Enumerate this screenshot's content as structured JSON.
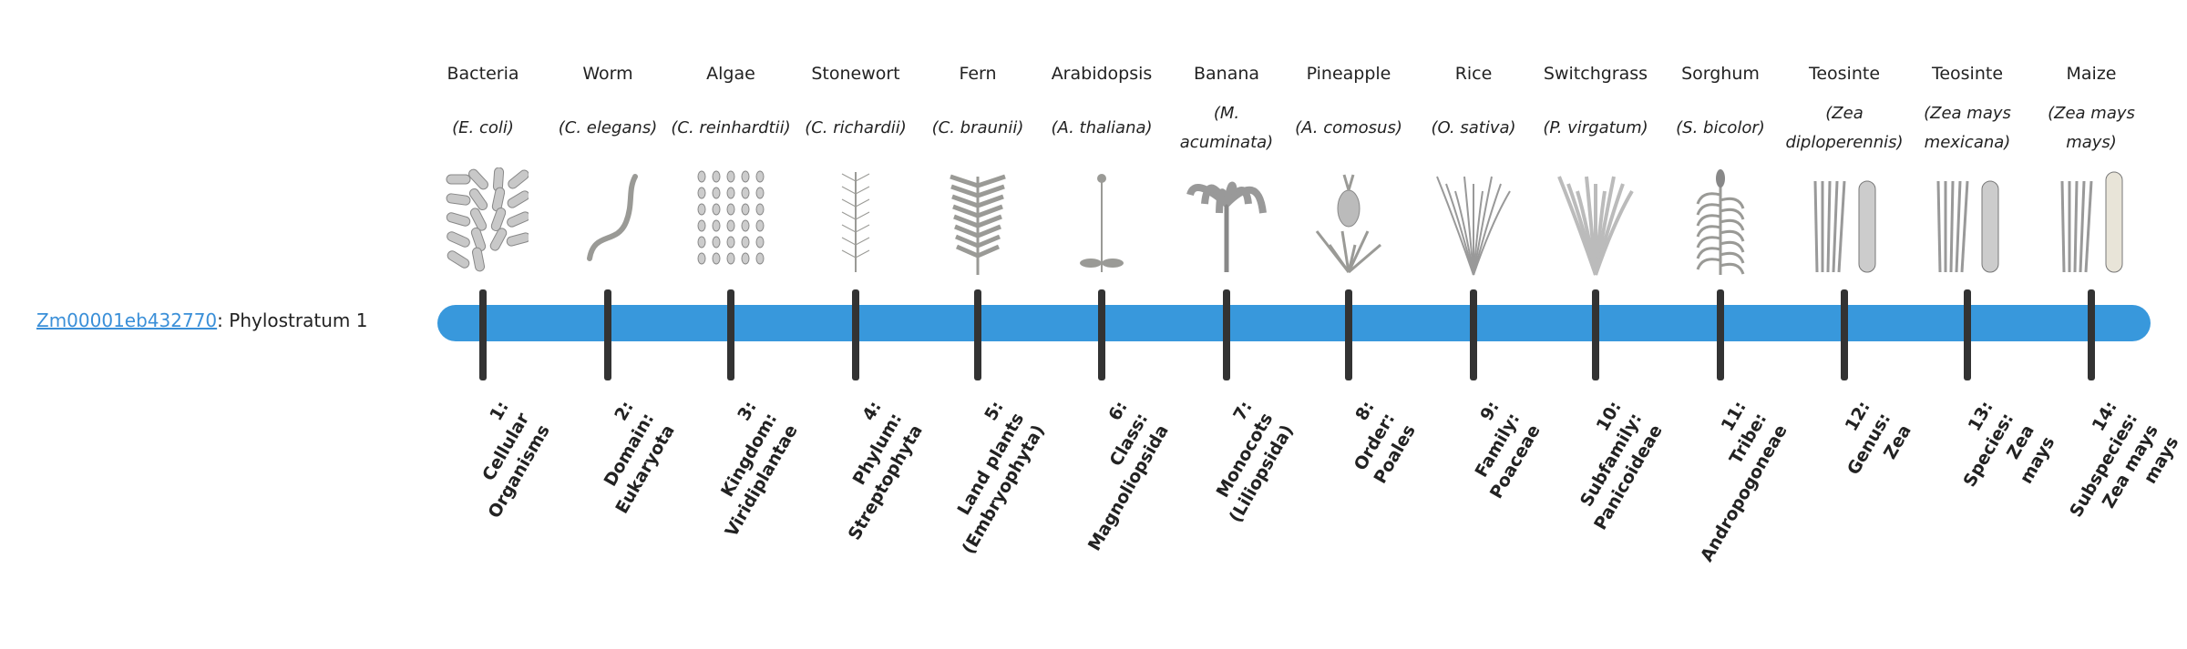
{
  "gene": {
    "id": "Zm00001eb432770",
    "suffix": ": Phylostratum 1"
  },
  "colors": {
    "bar": "#3898dc",
    "tick": "#333333",
    "link": "#3a8fd8"
  },
  "strata": [
    {
      "common": "Bacteria",
      "species": "(E. coli)",
      "rank": [
        "1:",
        "Cellular",
        "Organisms"
      ],
      "icon": "bacteria-icon"
    },
    {
      "common": "Worm",
      "species": "(C. elegans)",
      "rank": [
        "2:",
        "Domain:",
        "Eukaryota"
      ],
      "icon": "worm-icon"
    },
    {
      "common": "Algae",
      "species": "(C. reinhardtii)",
      "rank": [
        "3:",
        "Kingdom:",
        "Viridiplantae"
      ],
      "icon": "algae-icon"
    },
    {
      "common": "Stonewort",
      "species": "(C. richardii)",
      "rank": [
        "4:",
        "Phylum:",
        "Streptophyta"
      ],
      "icon": "stonewort-icon"
    },
    {
      "common": "Fern",
      "species": "(C. braunii)",
      "rank": [
        "5:",
        "Land plants",
        "(Embryophyta)"
      ],
      "icon": "fern-icon"
    },
    {
      "common": "Arabidopsis",
      "species": "(A. thaliana)",
      "rank": [
        "6:",
        "Class:",
        "Magnoliopsida"
      ],
      "icon": "arabidopsis-icon"
    },
    {
      "common": "Banana",
      "species": "(M. acuminata)",
      "rank": [
        "7:",
        "Monocots",
        "(Liliopsida)"
      ],
      "icon": "banana-icon"
    },
    {
      "common": "Pineapple",
      "species": "(A. comosus)",
      "rank": [
        "8:",
        "Order:",
        "Poales"
      ],
      "icon": "pineapple-icon"
    },
    {
      "common": "Rice",
      "species": "(O. sativa)",
      "rank": [
        "9:",
        "Family:",
        "Poaceae"
      ],
      "icon": "rice-icon"
    },
    {
      "common": "Switchgrass",
      "species": "(P. virgatum)",
      "rank": [
        "10:",
        "Subfamily:",
        "Panicoideae"
      ],
      "icon": "switchgrass-icon"
    },
    {
      "common": "Sorghum",
      "species": "(S. bicolor)",
      "rank": [
        "11:",
        "Tribe:",
        "Andropogoneae"
      ],
      "icon": "sorghum-icon"
    },
    {
      "common": "Teosinte",
      "species": "(Zea diploperennis)",
      "rank": [
        "12:",
        "Genus:",
        "Zea"
      ],
      "icon": "teosinte-icon"
    },
    {
      "common": "Teosinte",
      "species": "(Zea mays mexicana)",
      "rank": [
        "13:",
        "Species:",
        "Zea",
        "mays"
      ],
      "icon": "teosinte-icon"
    },
    {
      "common": "Maize",
      "species": "(Zea mays mays)",
      "rank": [
        "14:",
        "Subspecies:",
        "Zea mays",
        "mays"
      ],
      "icon": "maize-icon"
    }
  ]
}
